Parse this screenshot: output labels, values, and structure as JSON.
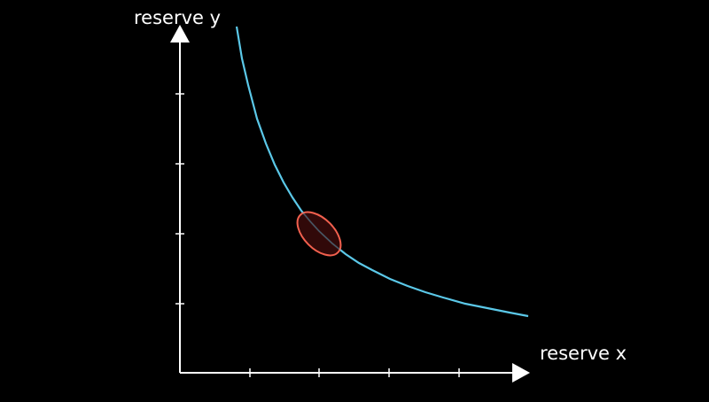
{
  "axes": {
    "y_label": "reserve y",
    "x_label": "reserve x"
  }
}
